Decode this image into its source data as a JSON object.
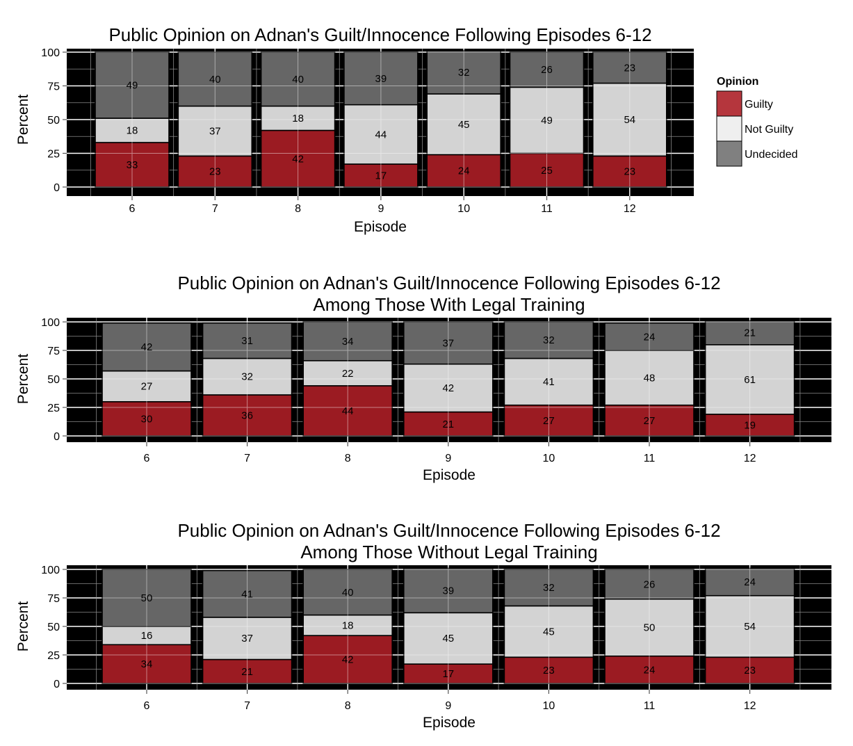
{
  "colors": {
    "guilty": "#9b1b22",
    "not_guilty": "#d3d3d3",
    "undecided": "#666666",
    "panel_bg": "#000000",
    "legend_guilty": "#b5363d",
    "legend_not_guilty": "#efefef",
    "legend_undecided": "#808080"
  },
  "legend": {
    "title": "Opinion",
    "entries": [
      "Guilty",
      "Not Guilty",
      "Undecided"
    ]
  },
  "chart_data": [
    {
      "type": "bar",
      "stacked": true,
      "title": "Public Opinion on Adnan's Guilt/Innocence Following Episodes 6-12",
      "subtitle": "",
      "xlabel": "Episode",
      "ylabel": "Percent",
      "ylim": [
        0,
        100
      ],
      "yticks": [
        0,
        25,
        50,
        75,
        100
      ],
      "categories": [
        "6",
        "7",
        "8",
        "9",
        "10",
        "11",
        "12"
      ],
      "series": [
        {
          "name": "Guilty",
          "values": [
            33,
            23,
            42,
            17,
            24,
            25,
            23
          ]
        },
        {
          "name": "Not Guilty",
          "values": [
            18,
            37,
            18,
            44,
            45,
            49,
            54
          ]
        },
        {
          "name": "Undecided",
          "values": [
            49,
            40,
            40,
            39,
            32,
            26,
            23
          ]
        }
      ],
      "legend_position": "right"
    },
    {
      "type": "bar",
      "stacked": true,
      "title": "Public Opinion on Adnan's Guilt/Innocence Following Episodes 6-12",
      "subtitle": "Among Those With Legal Training",
      "xlabel": "Episode",
      "ylabel": "Percent",
      "ylim": [
        0,
        100
      ],
      "yticks": [
        0,
        25,
        50,
        75,
        100
      ],
      "categories": [
        "6",
        "7",
        "8",
        "9",
        "10",
        "11",
        "12"
      ],
      "series": [
        {
          "name": "Guilty",
          "values": [
            30,
            36,
            44,
            21,
            27,
            27,
            19
          ]
        },
        {
          "name": "Not Guilty",
          "values": [
            27,
            32,
            22,
            42,
            41,
            48,
            61
          ]
        },
        {
          "name": "Undecided",
          "values": [
            42,
            31,
            34,
            37,
            32,
            24,
            21
          ]
        }
      ]
    },
    {
      "type": "bar",
      "stacked": true,
      "title": "Public Opinion on Adnan's Guilt/Innocence Following Episodes 6-12",
      "subtitle": "Among Those Without Legal Training",
      "xlabel": "Episode",
      "ylabel": "Percent",
      "ylim": [
        0,
        100
      ],
      "yticks": [
        0,
        25,
        50,
        75,
        100
      ],
      "categories": [
        "6",
        "7",
        "8",
        "9",
        "10",
        "11",
        "12"
      ],
      "series": [
        {
          "name": "Guilty",
          "values": [
            34,
            21,
            42,
            17,
            23,
            24,
            23
          ]
        },
        {
          "name": "Not Guilty",
          "values": [
            16,
            37,
            18,
            45,
            45,
            50,
            54
          ]
        },
        {
          "name": "Undecided",
          "values": [
            50,
            41,
            40,
            39,
            32,
            26,
            24
          ]
        }
      ]
    }
  ]
}
